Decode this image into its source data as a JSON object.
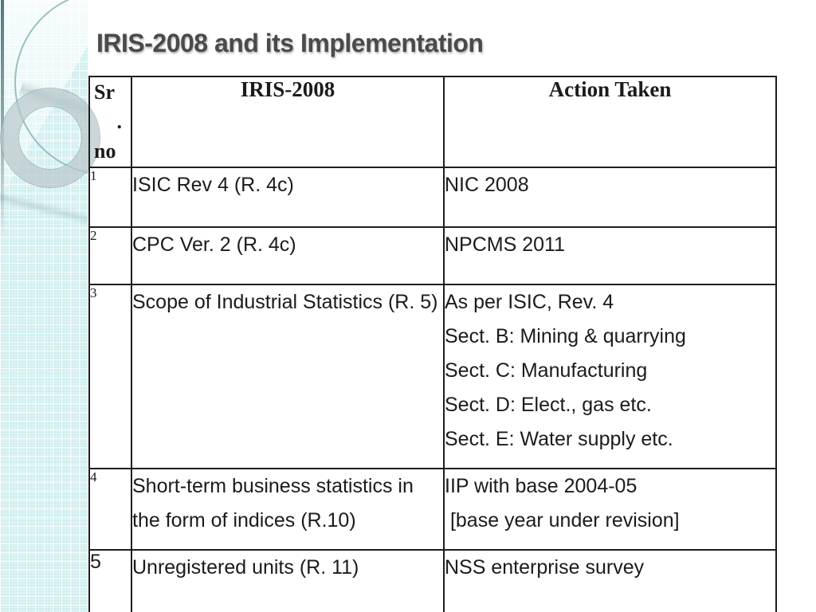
{
  "title": "IRIS-2008 and its Implementation",
  "table": {
    "columns": [
      {
        "id": "srno",
        "header_lines": [
          "Sr",
          ".",
          "no"
        ]
      },
      {
        "id": "iris",
        "header": "IRIS-2008"
      },
      {
        "id": "action",
        "header": "Action Taken"
      }
    ],
    "rows": [
      {
        "num": "1",
        "num_size": "small",
        "iris": "ISIC Rev 4 (R. 4c)",
        "action_lines": [
          "NIC 2008"
        ]
      },
      {
        "num": "2",
        "num_size": "small",
        "iris": "CPC Ver. 2 (R. 4c)",
        "action_lines": [
          "NPCMS 2011"
        ]
      },
      {
        "num": "3",
        "num_size": "small",
        "iris": "Scope of Industrial Statistics (R. 5)",
        "action_lines": [
          "As per ISIC, Rev. 4",
          "Sect. B: Mining & quarrying",
          "Sect. C: Manufacturing",
          "Sect. D: Elect., gas etc.",
          "Sect. E: Water supply etc."
        ]
      },
      {
        "num": "4",
        "num_size": "small",
        "iris": "Short-term business statistics in the form of indices (R.10)",
        "action_lines": [
          "IIP with base 2004-05",
          " [base year under revision]"
        ]
      },
      {
        "num": "5",
        "num_size": "large",
        "iris": "Unregistered units (R. 11)",
        "action_lines": [
          "NSS enterprise survey"
        ]
      }
    ]
  },
  "colors": {
    "title_text": "#4a4a4a",
    "table_border": "#1e1e1e",
    "sidebar_base": "#cdeeee",
    "accent_teal": "#407379",
    "ring_gray": "#bac8ca"
  }
}
